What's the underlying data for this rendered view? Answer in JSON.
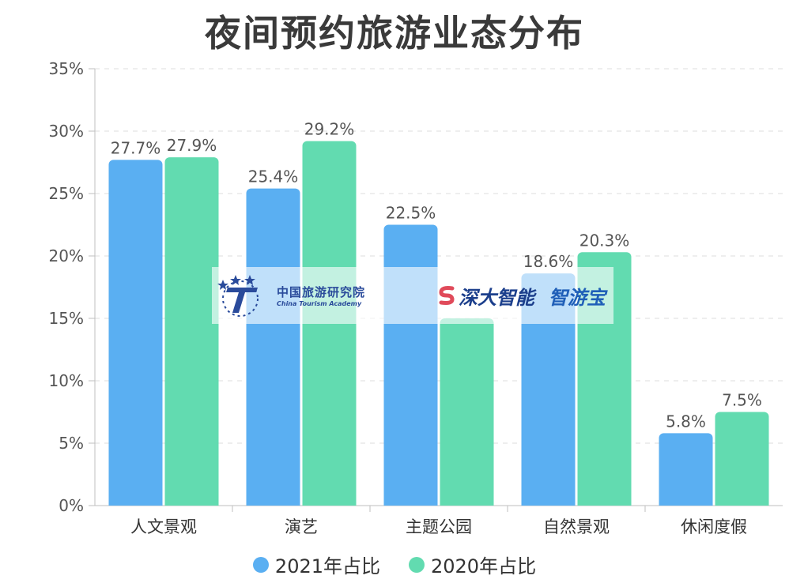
{
  "title": "夜间预约旅游业态分布",
  "colors": {
    "s2021": "#5aaff2",
    "s2020": "#62dbb0",
    "grid": "#dcdcdc",
    "axis": "#bfbfbf",
    "text": "#555555"
  },
  "legend": [
    {
      "label": "2021年占比",
      "color": "#5aaff2"
    },
    {
      "label": "2020年占比",
      "color": "#62dbb0"
    }
  ],
  "watermark": {
    "cta_zh": "中国旅游研究院",
    "cta_en": "China Tourism Academy",
    "sd": "深大智能",
    "zyb": "智游宝"
  },
  "chart_data": {
    "type": "bar",
    "title": "夜间预约旅游业态分布",
    "categories": [
      "人文景观",
      "演艺",
      "主题公园",
      "自然景观",
      "休闲度假"
    ],
    "series": [
      {
        "name": "2021年占比",
        "values": [
          27.7,
          25.4,
          22.5,
          18.6,
          5.8
        ],
        "labels": [
          "27.7%",
          "25.4%",
          "22.5%",
          "18.6%",
          "5.8%"
        ]
      },
      {
        "name": "2020年占比",
        "values": [
          27.9,
          29.2,
          15.0,
          20.3,
          7.5
        ],
        "labels": [
          "27.9%",
          "29.2%",
          "",
          "20.3%",
          "7.5%"
        ]
      }
    ],
    "ylim": [
      0,
      35
    ],
    "yticks": [
      "0%",
      "5%",
      "10%",
      "15%",
      "20%",
      "25%",
      "30%",
      "35%"
    ],
    "grid": true,
    "legend_position": "bottom"
  }
}
